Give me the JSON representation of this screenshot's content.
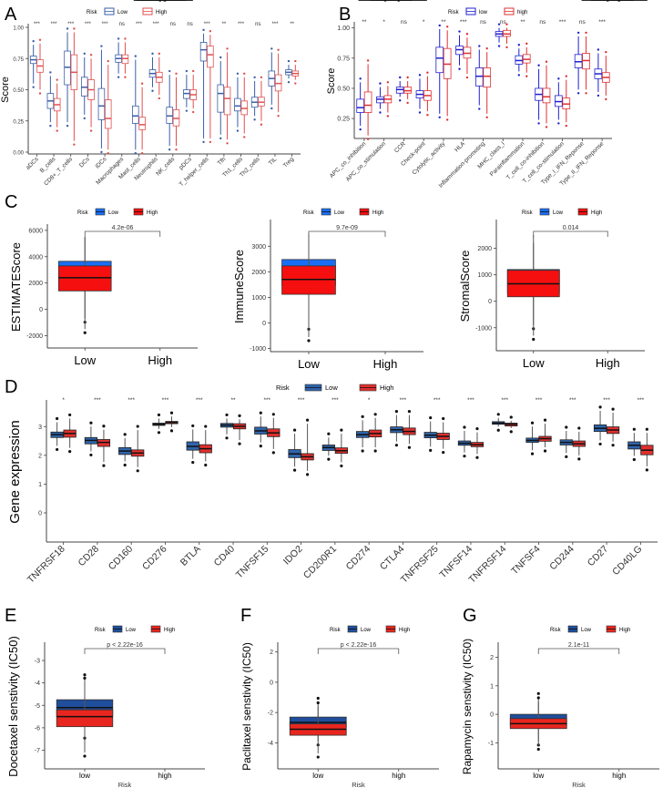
{
  "figure": {
    "panel_letters": [
      "A",
      "B",
      "C",
      "D",
      "E",
      "F",
      "G"
    ]
  },
  "chart_data": [
    {
      "panel": "A",
      "type": "box",
      "ylabel": "Score",
      "ylim": [
        0,
        1.0
      ],
      "yticks": [
        "0.00",
        "0.25",
        "0.50",
        "0.75",
        "1.00"
      ],
      "legend": {
        "title": "Risk",
        "entries": [
          "Low",
          "High"
        ],
        "colors": [
          "#3a5fa8",
          "#e05050"
        ],
        "placement": "top"
      },
      "categories": [
        "aDCs",
        "B_cells",
        "CD8+_T_cells",
        "DCs",
        "iDCs",
        "Macrophages",
        "Mast_cells",
        "Neutrophils",
        "NK_cells",
        "pDCs",
        "T_helper_cells",
        "Tfh",
        "Th1_cells",
        "Th2_cells",
        "TIL",
        "Treg"
      ],
      "significance": [
        "***",
        "***",
        "***",
        "***",
        "***",
        "ns",
        "***",
        "***",
        "ns",
        "ns",
        "***",
        "**",
        "***",
        "ns",
        "***",
        "**"
      ],
      "series": [
        {
          "name": "Low",
          "median": [
            0.74,
            0.41,
            0.68,
            0.52,
            0.37,
            0.75,
            0.29,
            0.63,
            0.29,
            0.47,
            0.82,
            0.47,
            0.37,
            0.4,
            0.59,
            0.64
          ],
          "q1": [
            0.71,
            0.35,
            0.54,
            0.45,
            0.26,
            0.72,
            0.23,
            0.6,
            0.23,
            0.43,
            0.73,
            0.32,
            0.33,
            0.36,
            0.53,
            0.62
          ],
          "q3": [
            0.77,
            0.47,
            0.81,
            0.6,
            0.51,
            0.78,
            0.37,
            0.66,
            0.36,
            0.5,
            0.88,
            0.54,
            0.43,
            0.44,
            0.65,
            0.66
          ],
          "lo": [
            0.55,
            0.24,
            0.24,
            0.3,
            0.03,
            0.63,
            0.02,
            0.52,
            0.05,
            0.36,
            0.11,
            0.14,
            0.2,
            0.29,
            0.38,
            0.59
          ],
          "hi": [
            0.86,
            0.61,
            0.96,
            0.76,
            0.82,
            0.88,
            0.74,
            0.76,
            0.62,
            0.62,
            0.95,
            0.73,
            0.6,
            0.57,
            0.8,
            0.7
          ]
        },
        {
          "name": "High",
          "median": [
            0.69,
            0.38,
            0.64,
            0.5,
            0.27,
            0.75,
            0.22,
            0.6,
            0.27,
            0.46,
            0.78,
            0.43,
            0.35,
            0.4,
            0.55,
            0.63
          ],
          "q1": [
            0.64,
            0.33,
            0.5,
            0.42,
            0.19,
            0.71,
            0.18,
            0.56,
            0.21,
            0.42,
            0.68,
            0.3,
            0.3,
            0.37,
            0.49,
            0.61
          ],
          "q3": [
            0.74,
            0.43,
            0.78,
            0.58,
            0.42,
            0.78,
            0.28,
            0.64,
            0.34,
            0.5,
            0.85,
            0.52,
            0.41,
            0.44,
            0.62,
            0.65
          ],
          "lo": [
            0.5,
            0.2,
            0.09,
            0.2,
            0.02,
            0.63,
            0.02,
            0.46,
            0.05,
            0.35,
            0.11,
            0.1,
            0.15,
            0.25,
            0.32,
            0.58
          ],
          "hi": [
            0.87,
            0.55,
            0.96,
            0.75,
            0.7,
            0.88,
            0.52,
            0.76,
            0.6,
            0.62,
            0.94,
            0.8,
            0.6,
            0.57,
            0.79,
            0.7
          ]
        }
      ]
    },
    {
      "panel": "B",
      "type": "box",
      "ylabel": "Score",
      "ylim": [
        0.1,
        1.02
      ],
      "yticks": [
        "0.25",
        "0.50",
        "0.75",
        "1.00"
      ],
      "legend": {
        "title": "Risk",
        "entries": [
          "low",
          "high"
        ],
        "colors": [
          "#2020d0",
          "#e03030"
        ],
        "placement": "top"
      },
      "categories": [
        "APC_co_inhibition",
        "APC_co_stimulation",
        "CCR",
        "Check-point",
        "Cytolytic_activity",
        "HLA",
        "Inflammation-promoting",
        "MHC_class_I",
        "Parainflammation",
        "T_cell_co-inhibition",
        "T_cell_co-stimulation",
        "Type_I_IFN_Reponse",
        "Type_II_IFN_Reponse"
      ],
      "significance": [
        "**",
        "*",
        "ns",
        "*",
        "**",
        "***",
        "ns",
        "ns",
        "**",
        "ns",
        "***",
        "ns",
        "***"
      ],
      "series": [
        {
          "name": "low",
          "median": [
            0.34,
            0.41,
            0.49,
            0.45,
            0.75,
            0.82,
            0.6,
            0.95,
            0.73,
            0.45,
            0.39,
            0.72,
            0.62
          ],
          "q1": [
            0.3,
            0.38,
            0.46,
            0.42,
            0.63,
            0.78,
            0.52,
            0.93,
            0.7,
            0.4,
            0.35,
            0.67,
            0.58
          ],
          "q3": [
            0.41,
            0.43,
            0.51,
            0.48,
            0.84,
            0.85,
            0.67,
            0.97,
            0.77,
            0.5,
            0.44,
            0.78,
            0.66
          ],
          "lo": [
            0.19,
            0.33,
            0.43,
            0.33,
            0.29,
            0.69,
            0.36,
            0.88,
            0.64,
            0.24,
            0.24,
            0.49,
            0.47
          ],
          "hi": [
            0.55,
            0.51,
            0.56,
            0.58,
            0.99,
            0.94,
            0.82,
            1.0,
            0.83,
            0.66,
            0.55,
            0.93,
            0.79
          ]
        },
        {
          "name": "high",
          "median": [
            0.36,
            0.41,
            0.48,
            0.44,
            0.7,
            0.79,
            0.6,
            0.95,
            0.74,
            0.43,
            0.37,
            0.73,
            0.59
          ],
          "q1": [
            0.3,
            0.38,
            0.46,
            0.4,
            0.58,
            0.75,
            0.51,
            0.93,
            0.71,
            0.38,
            0.33,
            0.66,
            0.55
          ],
          "q3": [
            0.47,
            0.44,
            0.51,
            0.48,
            0.83,
            0.84,
            0.67,
            0.98,
            0.78,
            0.5,
            0.42,
            0.79,
            0.63
          ],
          "lo": [
            0.11,
            0.3,
            0.41,
            0.31,
            0.27,
            0.62,
            0.29,
            0.87,
            0.63,
            0.21,
            0.22,
            0.49,
            0.44
          ],
          "hi": [
            0.7,
            0.52,
            0.56,
            0.6,
            0.98,
            0.92,
            0.8,
            1.0,
            0.84,
            0.69,
            0.57,
            0.93,
            0.77
          ]
        }
      ]
    },
    {
      "panel": "C1",
      "type": "box",
      "ylabel": "ESTIMATEScore",
      "ylim": [
        -2800,
        6200
      ],
      "yticks": [
        "-2000",
        "0",
        "2000",
        "4000",
        "6000"
      ],
      "legend": {
        "title": "Risk",
        "entries": [
          "Low",
          "High"
        ],
        "colors": [
          "#1a6ef5",
          "#f50f0f"
        ],
        "placement": "top"
      },
      "categories": [
        "Low",
        "High"
      ],
      "pvalue": "4.2e-06",
      "series": [
        {
          "name": "Low",
          "median": [
            2800
          ],
          "q1": [
            1950
          ],
          "q3": [
            3650
          ],
          "lo": [
            -700
          ],
          "hi": [
            5500
          ]
        },
        {
          "name": "High",
          "median": [
            2400
          ],
          "q1": [
            1400
          ],
          "q3": [
            3300
          ],
          "lo": [
            -1500
          ],
          "hi": [
            5500
          ]
        }
      ]
    },
    {
      "panel": "C2",
      "type": "box",
      "ylabel": "ImmuneScore",
      "ylim": [
        -1050,
        3900
      ],
      "yticks": [
        "-1000",
        "0",
        "1000",
        "2000",
        "3000"
      ],
      "legend": {
        "title": "Risk",
        "entries": [
          "Low",
          "High"
        ],
        "colors": [
          "#1a6ef5",
          "#f50f0f"
        ],
        "placement": "top"
      },
      "categories": [
        "Low",
        "High"
      ],
      "pvalue": "9.7e-09",
      "series": [
        {
          "name": "Low",
          "median": [
            2020
          ],
          "q1": [
            1470
          ],
          "q3": [
            2480
          ],
          "lo": [
            -100
          ],
          "hi": [
            3500
          ]
        },
        {
          "name": "High",
          "median": [
            1700
          ],
          "q1": [
            1120
          ],
          "q3": [
            2230
          ],
          "lo": [
            -550
          ],
          "hi": [
            3300
          ]
        }
      ]
    },
    {
      "panel": "C3",
      "type": "box",
      "ylabel": "StromalScore",
      "ylim": [
        -1800,
        2950
      ],
      "yticks": [
        "-1000",
        "0",
        "1000",
        "2000"
      ],
      "legend": {
        "title": "Risk",
        "entries": [
          "Low",
          "High"
        ],
        "colors": [
          "#1a6ef5",
          "#f50f0f"
        ],
        "placement": "top"
      },
      "categories": [
        "Low",
        "High"
      ],
      "pvalue": "0.014",
      "series": [
        {
          "name": "Low",
          "median": [
            780
          ],
          "q1": [
            330
          ],
          "q3": [
            1200
          ],
          "lo": [
            -900
          ],
          "hi": [
            2200
          ]
        },
        {
          "name": "High",
          "median": [
            660
          ],
          "q1": [
            170
          ],
          "q3": [
            1170
          ],
          "lo": [
            -1300
          ],
          "hi": [
            2500
          ]
        }
      ]
    },
    {
      "panel": "D",
      "type": "box",
      "ylabel": "Gene expression",
      "ylim": [
        -0.95,
        3.8
      ],
      "yticks": [
        "0",
        "1",
        "2",
        "3"
      ],
      "legend": {
        "title": "Risk",
        "entries": [
          "Low",
          "High"
        ],
        "colors": [
          "#2f64ac",
          "#e0302e"
        ],
        "placement": "top"
      },
      "categories": [
        "TNFRSF18",
        "CD28",
        "CD160",
        "CD276",
        "BTLA",
        "CD40",
        "TNFSF15",
        "IDO2",
        "CD200R1",
        "CD274",
        "CTLA4",
        "TNFRSF25",
        "TNFSF14",
        "TNFRSF14",
        "TNFSF4",
        "CD244",
        "CD27",
        "CD40LG"
      ],
      "significance": [
        "*",
        "***",
        "***",
        "***",
        "***",
        "**",
        "***",
        "***",
        "***",
        "*",
        "***",
        "***",
        "***",
        "***",
        "***",
        "***",
        "***",
        "***"
      ],
      "series": [
        {
          "name": "Low",
          "median": [
            2.72,
            2.52,
            2.15,
            3.08,
            2.31,
            3.05,
            2.85,
            2.05,
            2.27,
            2.72,
            2.89,
            2.7,
            2.42,
            3.12,
            2.52,
            2.45,
            2.94,
            2.35
          ],
          "q1": [
            2.62,
            2.4,
            2.03,
            3.04,
            2.18,
            2.98,
            2.74,
            1.92,
            2.17,
            2.62,
            2.79,
            2.61,
            2.35,
            3.08,
            2.45,
            2.36,
            2.83,
            2.22
          ],
          "q3": [
            2.81,
            2.62,
            2.27,
            3.12,
            2.47,
            3.11,
            2.98,
            2.2,
            2.36,
            2.83,
            2.99,
            2.8,
            2.5,
            3.17,
            2.6,
            2.54,
            3.06,
            2.47
          ],
          "lo": [
            2.33,
            2.14,
            1.79,
            2.92,
            1.88,
            2.73,
            2.45,
            1.61,
            1.99,
            2.28,
            2.48,
            2.3,
            2.1,
            3.0,
            2.18,
            2.08,
            2.52,
            1.98
          ],
          "hi": [
            3.15,
            3.0,
            2.6,
            3.28,
            2.9,
            3.28,
            3.35,
            2.75,
            2.62,
            3.22,
            3.4,
            3.18,
            2.85,
            3.3,
            3.0,
            2.85,
            3.55,
            2.78
          ]
        },
        {
          "name": "High",
          "median": [
            2.76,
            2.45,
            2.08,
            3.14,
            2.23,
            3.01,
            2.78,
            1.95,
            2.16,
            2.76,
            2.83,
            2.66,
            2.37,
            3.08,
            2.58,
            2.4,
            2.88,
            2.18
          ],
          "q1": [
            2.63,
            2.31,
            1.97,
            3.1,
            2.09,
            2.92,
            2.65,
            1.84,
            2.07,
            2.64,
            2.72,
            2.55,
            2.3,
            3.02,
            2.49,
            2.31,
            2.76,
            2.02
          ],
          "q3": [
            2.88,
            2.55,
            2.19,
            3.18,
            2.37,
            3.1,
            2.92,
            2.06,
            2.26,
            2.88,
            2.95,
            2.77,
            2.45,
            3.12,
            2.66,
            2.5,
            2.99,
            2.35
          ],
          "lo": [
            2.26,
            1.77,
            1.59,
            2.98,
            1.79,
            2.53,
            2.22,
            1.46,
            1.76,
            2.28,
            2.4,
            2.23,
            2.05,
            2.95,
            2.28,
            2.0,
            2.48,
            1.62
          ],
          "hi": [
            3.28,
            2.89,
            2.88,
            3.35,
            2.88,
            3.25,
            3.3,
            3.1,
            2.75,
            3.3,
            3.4,
            3.15,
            2.8,
            3.2,
            3.1,
            2.82,
            3.48,
            2.78
          ]
        }
      ]
    },
    {
      "panel": "E",
      "type": "box",
      "ylabel": "Docetaxel senstivity (IC50)",
      "xlabel": "Risk",
      "ylim": [
        -7.75,
        -2.35
      ],
      "yticks": [
        "-7",
        "-6",
        "-5",
        "-4",
        "-3"
      ],
      "legend": {
        "title": "Risk",
        "entries": [
          "Low",
          "High"
        ],
        "colors": [
          "#1f4e9c",
          "#e8261f"
        ],
        "placement": "top"
      },
      "categories": [
        "low",
        "high"
      ],
      "pvalue": "p < 2.22e-16",
      "series": [
        {
          "name": "Low",
          "median": [
            -5.1
          ],
          "q1": [
            -5.45
          ],
          "q3": [
            -4.75
          ],
          "lo": [
            -6.3
          ],
          "hi": [
            -3.8
          ]
        },
        {
          "name": "High",
          "median": [
            -5.5
          ],
          "q1": [
            -5.95
          ],
          "q3": [
            -5.2
          ],
          "lo": [
            -7.1
          ],
          "hi": [
            -3.95
          ]
        }
      ]
    },
    {
      "panel": "F",
      "type": "box",
      "ylabel": "Paclitaxel senstivity (IC50)",
      "xlabel": "Risk",
      "ylim": [
        -5.6,
        2.4
      ],
      "yticks": [
        "-4",
        "-2",
        "0",
        "2"
      ],
      "legend": {
        "title": "Risk",
        "entries": [
          "Low",
          "High"
        ],
        "colors": [
          "#1f4e9c",
          "#e8261f"
        ],
        "placement": "top"
      },
      "categories": [
        "low",
        "high"
      ],
      "pvalue": "p < 2.22e-16",
      "series": [
        {
          "name": "Low",
          "median": [
            -2.65
          ],
          "q1": [
            -2.95
          ],
          "q3": [
            -2.3
          ],
          "lo": [
            -3.9
          ],
          "hi": [
            -1.3
          ]
        },
        {
          "name": "High",
          "median": [
            -3.1
          ],
          "q1": [
            -3.5
          ],
          "q3": [
            -2.75
          ],
          "lo": [
            -4.7
          ],
          "hi": [
            -1.6
          ]
        }
      ]
    },
    {
      "panel": "G",
      "type": "box",
      "ylabel": "Rapamycin senstivity (IC50)",
      "xlabel": "Risk",
      "ylim": [
        -1.85,
        2.4
      ],
      "yticks": [
        "-1",
        "0",
        "1",
        "2"
      ],
      "legend": {
        "title": "Risk",
        "entries": [
          "Low",
          "High"
        ],
        "colors": [
          "#1f4e9c",
          "#e8261f"
        ],
        "placement": "top"
      },
      "categories": [
        "low",
        "high"
      ],
      "pvalue": "2.1e-11",
      "series": [
        {
          "name": "Low",
          "median": [
            -0.2
          ],
          "q1": [
            -0.4
          ],
          "q3": [
            0.0
          ],
          "lo": [
            -0.95
          ],
          "hi": [
            0.6
          ]
        },
        {
          "name": "High",
          "median": [
            -0.33
          ],
          "q1": [
            -0.5
          ],
          "q3": [
            -0.15
          ],
          "lo": [
            -1.1
          ],
          "hi": [
            0.45
          ]
        }
      ]
    }
  ]
}
